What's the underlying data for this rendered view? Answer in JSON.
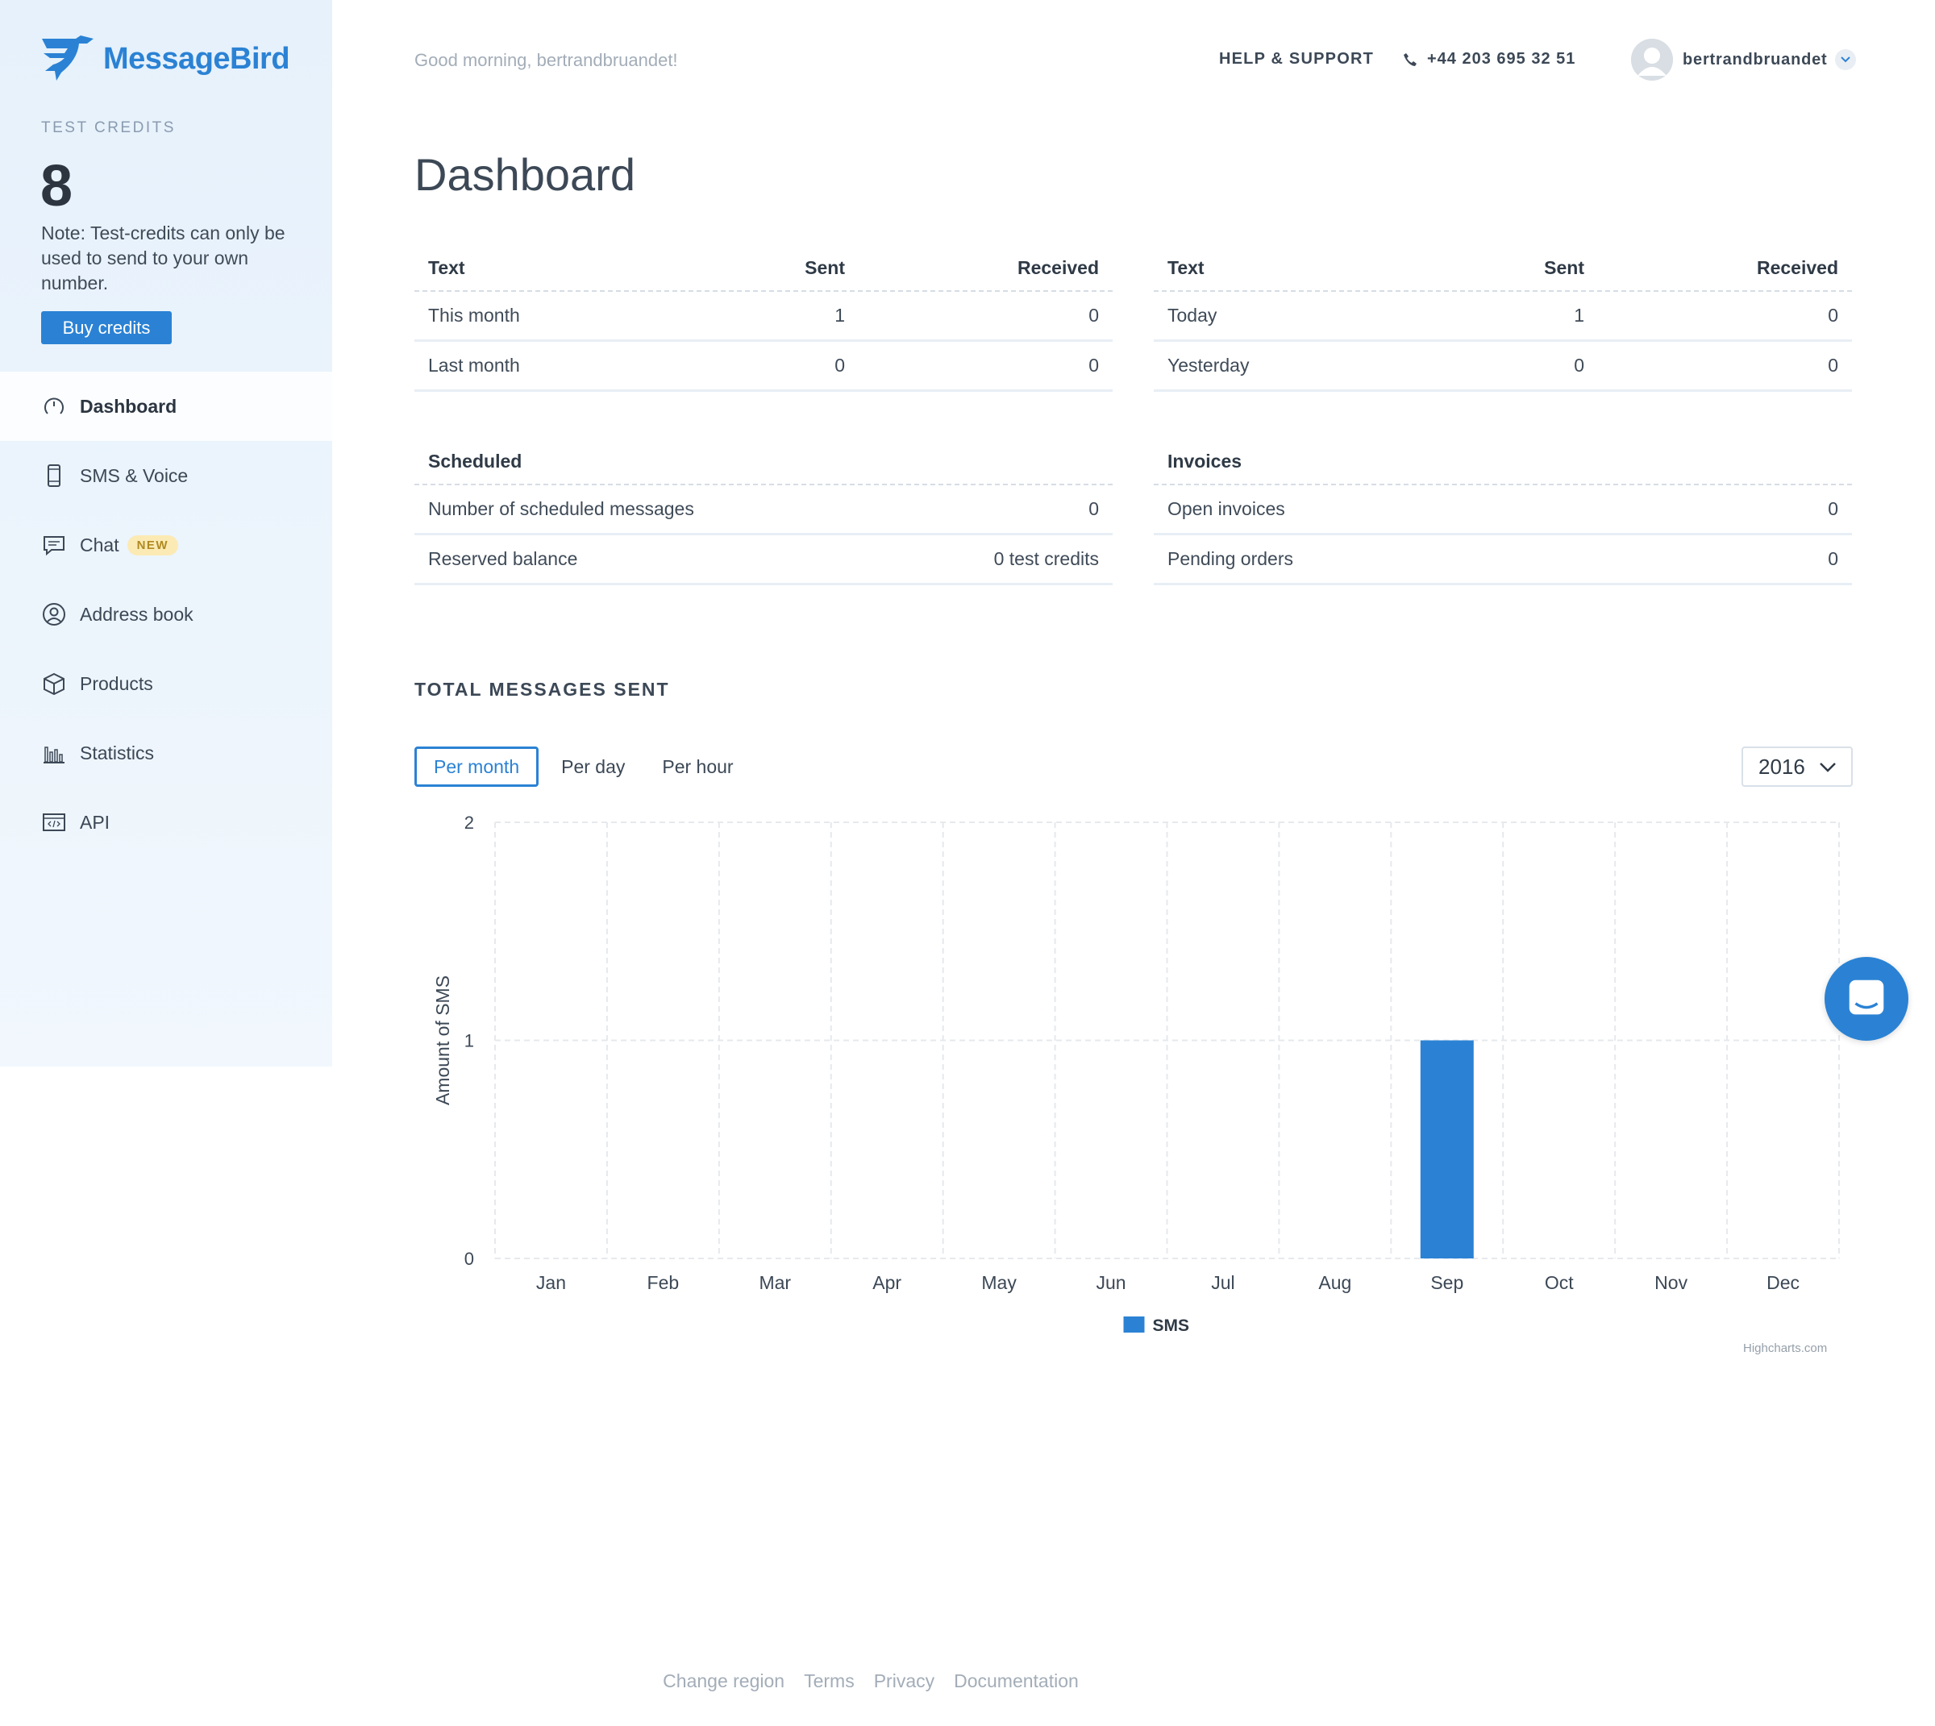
{
  "brand": {
    "name": "MessageBird",
    "color": "#2b82d4"
  },
  "sidebar": {
    "credits_label": "TEST CREDITS",
    "credits_value": "8",
    "credits_note": "Note: Test-credits can only be used to send to your own number.",
    "buy_label": "Buy credits",
    "items": [
      {
        "label": "Dashboard",
        "icon": "gauge-icon",
        "active": true
      },
      {
        "label": "SMS & Voice",
        "icon": "phone-device-icon"
      },
      {
        "label": "Chat",
        "icon": "chat-bubble-icon",
        "badge": "NEW"
      },
      {
        "label": "Address book",
        "icon": "contact-icon"
      },
      {
        "label": "Products",
        "icon": "box-icon"
      },
      {
        "label": "Statistics",
        "icon": "bar-chart-icon"
      },
      {
        "label": "API",
        "icon": "code-window-icon"
      }
    ]
  },
  "header": {
    "greeting": "Good morning, bertrandbruandet!",
    "help": "HELP & SUPPORT",
    "phone": "+44 203 695 32 51",
    "username": "bertrandbruandet"
  },
  "page_title": "Dashboard",
  "tables": {
    "monthly": {
      "headers": [
        "Text",
        "Sent",
        "Received"
      ],
      "rows": [
        [
          "This month",
          "1",
          "0"
        ],
        [
          "Last month",
          "0",
          "0"
        ]
      ]
    },
    "daily": {
      "headers": [
        "Text",
        "Sent",
        "Received"
      ],
      "rows": [
        [
          "Today",
          "1",
          "0"
        ],
        [
          "Yesterday",
          "0",
          "0"
        ]
      ]
    },
    "scheduled": {
      "header": "Scheduled",
      "rows": [
        [
          "Number of scheduled messages",
          "0"
        ],
        [
          "Reserved balance",
          "0 test credits"
        ]
      ]
    },
    "invoices": {
      "header": "Invoices",
      "rows": [
        [
          "Open invoices",
          "0"
        ],
        [
          "Pending orders",
          "0"
        ]
      ]
    }
  },
  "chart_section": {
    "title": "TOTAL MESSAGES SENT",
    "tabs": [
      "Per month",
      "Per day",
      "Per hour"
    ],
    "active_tab": "Per month",
    "year": "2016",
    "credit": "Highcharts.com"
  },
  "chart_data": {
    "type": "bar",
    "categories": [
      "Jan",
      "Feb",
      "Mar",
      "Apr",
      "May",
      "Jun",
      "Jul",
      "Aug",
      "Sep",
      "Oct",
      "Nov",
      "Dec"
    ],
    "series": [
      {
        "name": "SMS",
        "values": [
          0,
          0,
          0,
          0,
          0,
          0,
          0,
          0,
          1,
          0,
          0,
          0
        ],
        "color": "#2b82d4"
      }
    ],
    "ylabel": "Amount of SMS",
    "ylim": [
      0,
      2
    ],
    "yticks": [
      "0",
      "1",
      "2"
    ],
    "grid": true,
    "legend": "bottom-center"
  },
  "footer": {
    "links": [
      "Change region",
      "Terms",
      "Privacy",
      "Documentation"
    ]
  }
}
